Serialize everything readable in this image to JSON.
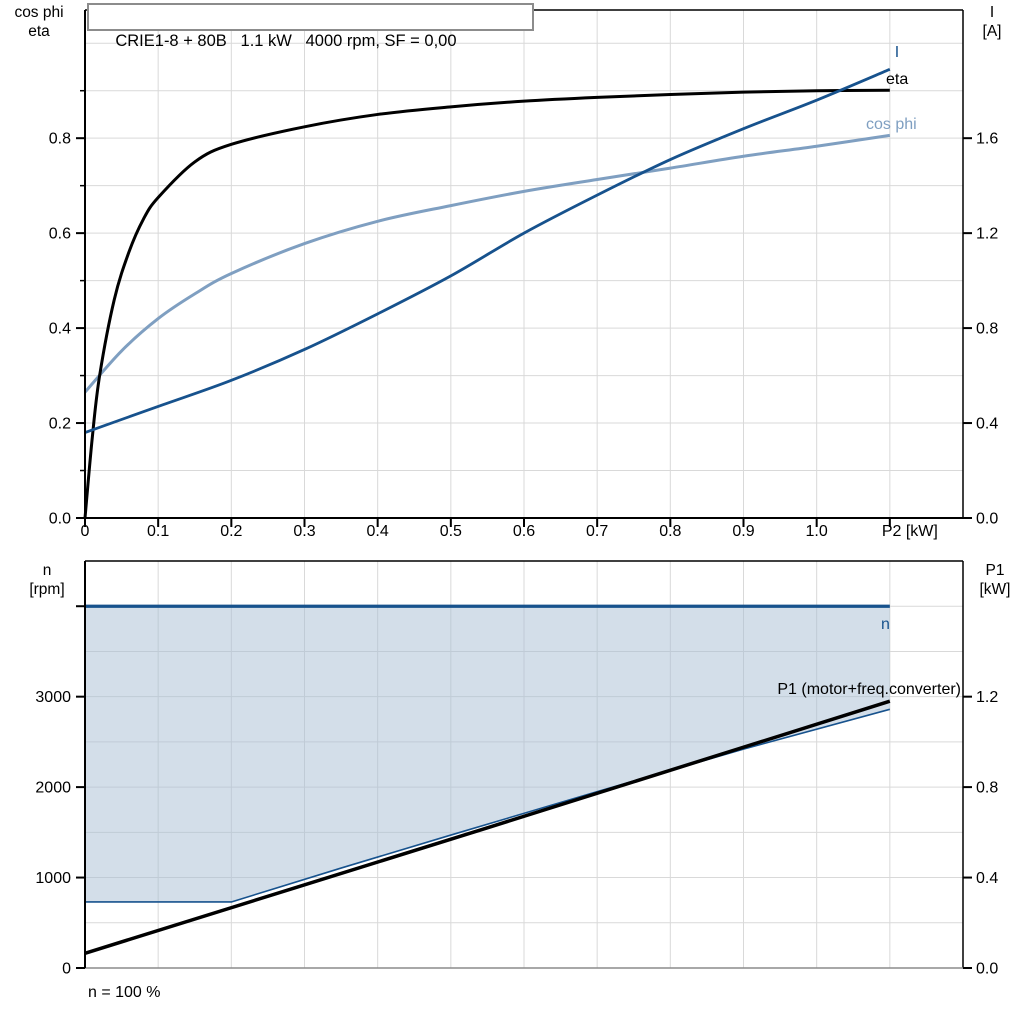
{
  "header": {
    "title": "CRIE1-8 + 80B   1.1 kW   4000 rpm, SF = 0,00"
  },
  "footnote": "n = 100 %",
  "palette": {
    "eta": "#000000",
    "current": "#17528d",
    "cos_phi": "#7f9fc1",
    "band_fill": "#a7bdd3",
    "grid": "#d9d9d9",
    "frame": "#000000",
    "frame_gray": "#8c8c8c"
  },
  "chart_data": [
    {
      "id": "power-chart",
      "type": "line",
      "title": "CRIE1-8 + 80B   1.1 kW   4000 rpm, SF = 0,00",
      "x_axis": {
        "label": "P2 [kW]",
        "lim": [
          0,
          1.2
        ],
        "grid_step": 0.1,
        "tick_values": [
          0,
          0.1,
          0.2,
          0.3,
          0.4,
          0.5,
          0.6,
          0.7,
          0.8,
          0.9,
          1.0,
          1.1
        ],
        "tick_labels": [
          "0",
          "0.1",
          "0.2",
          "0.3",
          "0.4",
          "0.5",
          "0.6",
          "0.7",
          "0.8",
          "0.9",
          "1.0",
          "P2 [kW]"
        ]
      },
      "y_left": {
        "title_lines": [
          "cos phi",
          "eta"
        ],
        "lim": [
          0,
          1.07
        ],
        "grid_step": 0.1,
        "tick_values": [
          0,
          0.2,
          0.4,
          0.6,
          0.8
        ],
        "tick_labels": [
          "0.0",
          "0.2",
          "0.4",
          "0.6",
          "0.8"
        ],
        "minor_ticks": [
          0.1,
          0.3,
          0.5,
          0.7,
          0.9
        ]
      },
      "y_right": {
        "title_lines": [
          "I",
          "[A]"
        ],
        "lim": [
          0,
          2.14
        ],
        "tick_values": [
          0,
          0.4,
          0.8,
          1.2,
          1.6
        ],
        "tick_labels": [
          "0.0",
          "0.4",
          "0.8",
          "1.2",
          "1.6"
        ]
      },
      "series": [
        {
          "id": "cos-phi",
          "label": "cos phi",
          "axis": "left",
          "color_key": "cos_phi",
          "smooth": true,
          "points": [
            [
              0,
              0.265
            ],
            [
              0.05,
              0.352
            ],
            [
              0.1,
              0.42
            ],
            [
              0.15,
              0.472
            ],
            [
              0.2,
              0.515
            ],
            [
              0.3,
              0.578
            ],
            [
              0.4,
              0.625
            ],
            [
              0.5,
              0.658
            ],
            [
              0.6,
              0.688
            ],
            [
              0.7,
              0.713
            ],
            [
              0.8,
              0.737
            ],
            [
              0.9,
              0.762
            ],
            [
              1.0,
              0.783
            ],
            [
              1.1,
              0.806
            ]
          ]
        },
        {
          "id": "eta",
          "label": "eta",
          "axis": "left",
          "color_key": "eta",
          "smooth": true,
          "points": [
            [
              0,
              0
            ],
            [
              0.01,
              0.17
            ],
            [
              0.02,
              0.3
            ],
            [
              0.04,
              0.46
            ],
            [
              0.06,
              0.56
            ],
            [
              0.08,
              0.63
            ],
            [
              0.1,
              0.675
            ],
            [
              0.15,
              0.75
            ],
            [
              0.2,
              0.787
            ],
            [
              0.3,
              0.824
            ],
            [
              0.4,
              0.85
            ],
            [
              0.5,
              0.866
            ],
            [
              0.6,
              0.878
            ],
            [
              0.7,
              0.886
            ],
            [
              0.8,
              0.892
            ],
            [
              0.9,
              0.897
            ],
            [
              1.0,
              0.9
            ],
            [
              1.1,
              0.901
            ]
          ]
        },
        {
          "id": "current",
          "label": "I",
          "axis": "right",
          "color_key": "current",
          "smooth": true,
          "points": [
            [
              0,
              0.36
            ],
            [
              0.1,
              0.47
            ],
            [
              0.2,
              0.58
            ],
            [
              0.3,
              0.71
            ],
            [
              0.4,
              0.86
            ],
            [
              0.5,
              1.02
            ],
            [
              0.6,
              1.2
            ],
            [
              0.7,
              1.36
            ],
            [
              0.8,
              1.51
            ],
            [
              0.9,
              1.64
            ],
            [
              1.0,
              1.76
            ],
            [
              1.1,
              1.89
            ]
          ]
        }
      ]
    },
    {
      "id": "speed-chart",
      "type": "line",
      "x_axis": {
        "label": "",
        "lim": [
          0,
          1.2
        ],
        "grid_step": 0.1,
        "tick_values": [],
        "tick_labels": []
      },
      "y_left": {
        "title_lines": [
          "n",
          "[rpm]"
        ],
        "lim": [
          0,
          4500
        ],
        "grid_step": 500,
        "tick_values": [
          0,
          1000,
          2000,
          3000,
          4000
        ],
        "tick_labels": [
          "0",
          "1000",
          "2000",
          "3000",
          ""
        ],
        "minor_ticks": []
      },
      "y_right": {
        "title_lines": [
          "P1",
          "[kW]"
        ],
        "lim": [
          0,
          1.8
        ],
        "tick_values": [
          0,
          0.4,
          0.8,
          1.2
        ],
        "tick_labels": [
          "0.0",
          "0.4",
          "0.8",
          "1.2"
        ]
      },
      "band": {
        "upper": "n-max",
        "lower": "n-min",
        "fill_key": "band_fill",
        "opacity": 0.5
      },
      "series": [
        {
          "id": "n-min",
          "label": "",
          "axis": "left",
          "color_key": "current",
          "smooth": false,
          "points": [
            [
              0,
              730
            ],
            [
              0.2,
              730
            ],
            [
              0.35,
              1105
            ],
            [
              0.5,
              1470
            ],
            [
              0.7,
              1950
            ],
            [
              0.9,
              2420
            ],
            [
              1.1,
              2860
            ]
          ]
        },
        {
          "id": "n-max",
          "label": "n",
          "axis": "left",
          "color_key": "current",
          "smooth": false,
          "points": [
            [
              0,
              4000
            ],
            [
              1.1,
              4000
            ]
          ]
        },
        {
          "id": "p1",
          "label": "P1 (motor+freq.converter)",
          "axis": "right",
          "color_key": "eta",
          "smooth": false,
          "points": [
            [
              0,
              0.065
            ],
            [
              0.55,
              0.62
            ],
            [
              1.1,
              1.18
            ]
          ]
        }
      ],
      "annotations": {
        "speed_note": "n = 100 %"
      }
    }
  ]
}
